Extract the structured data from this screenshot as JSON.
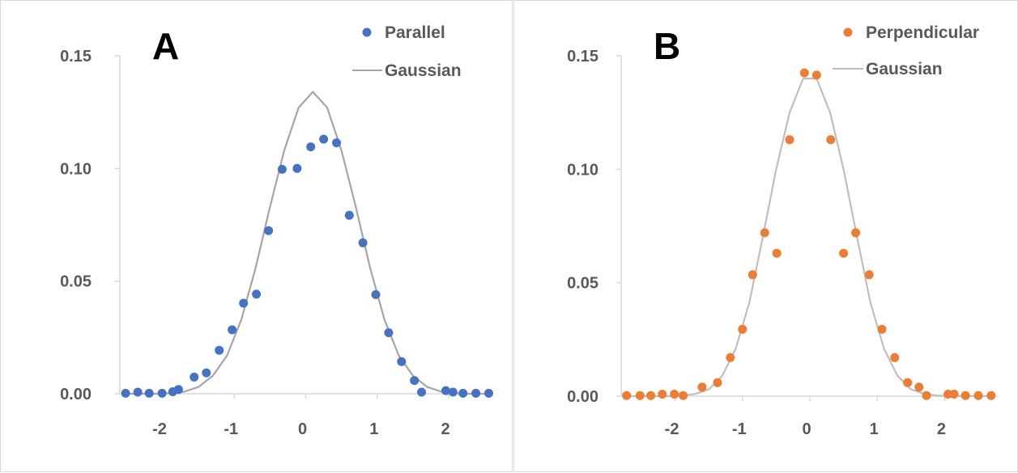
{
  "chart_data": [
    {
      "type": "scatter",
      "panel_label": "A",
      "title": "",
      "xlabel": "",
      "ylabel": "",
      "xlim": [
        -2.6,
        2.6
      ],
      "ylim": [
        0,
        0.15
      ],
      "xticks": [
        "-2",
        "-1",
        "0",
        "1",
        "2"
      ],
      "yticks": [
        "0.00",
        "0.05",
        "0.10",
        "0.15"
      ],
      "grid": false,
      "legend_position": "top-right",
      "series": [
        {
          "name": "Parallel",
          "kind": "points",
          "color": "#4472C4",
          "x": [
            -2.52,
            -2.35,
            -2.19,
            -2.01,
            -1.86,
            -1.78,
            -1.56,
            -1.39,
            -1.21,
            -1.03,
            -0.87,
            -0.69,
            -0.52,
            -0.33,
            -0.12,
            0.07,
            0.25,
            0.43,
            0.61,
            0.8,
            0.98,
            1.16,
            1.34,
            1.52,
            1.62,
            1.96,
            2.06,
            2.2,
            2.38,
            2.56
          ],
          "y": [
            0.0002,
            0.0007,
            0.0002,
            0.0002,
            0.0009,
            0.0019,
            0.0074,
            0.0093,
            0.0193,
            0.0284,
            0.0402,
            0.0442,
            0.0724,
            0.0996,
            0.1,
            0.1096,
            0.113,
            0.1114,
            0.0792,
            0.067,
            0.044,
            0.0271,
            0.0143,
            0.0059,
            0.0007,
            0.0014,
            0.0007,
            0.0002,
            0.0002,
            0.0002
          ]
        },
        {
          "name": "Gaussian",
          "kind": "line",
          "color": "#A5A5A5",
          "x": [
            -2.5,
            -2.3,
            -2.1,
            -1.9,
            -1.7,
            -1.5,
            -1.3,
            -1.1,
            -0.9,
            -0.7,
            -0.5,
            -0.3,
            -0.1,
            0.1,
            0.3,
            0.5,
            0.7,
            0.9,
            1.1,
            1.3,
            1.5,
            1.7,
            1.9,
            2.1,
            2.3,
            2.5
          ],
          "y": [
            0.0,
            0.0,
            0.0,
            0.0002,
            0.0009,
            0.003,
            0.008,
            0.017,
            0.033,
            0.056,
            0.083,
            0.108,
            0.127,
            0.134,
            0.127,
            0.108,
            0.083,
            0.056,
            0.033,
            0.017,
            0.008,
            0.003,
            0.0009,
            0.0002,
            0.0,
            0.0
          ]
        }
      ]
    },
    {
      "type": "scatter",
      "panel_label": "B",
      "title": "",
      "xlabel": "",
      "ylabel": "",
      "xlim": [
        -2.8,
        2.8
      ],
      "ylim": [
        0,
        0.15
      ],
      "xticks": [
        "-2",
        "-1",
        "0",
        "1",
        "2"
      ],
      "yticks": [
        "0.00",
        "0.05",
        "0.10",
        "0.15"
      ],
      "grid": false,
      "legend_position": "top-right",
      "series": [
        {
          "name": "Perpendicular",
          "kind": "points",
          "color": "#ED7D31",
          "x": [
            -2.72,
            -2.52,
            -2.36,
            -2.19,
            -2.01,
            -1.88,
            -1.6,
            -1.37,
            -1.18,
            -1.0,
            -0.85,
            -0.67,
            -0.49,
            -0.3,
            -0.08,
            0.1,
            0.31,
            0.5,
            0.68,
            0.88,
            1.07,
            1.26,
            1.45,
            1.62,
            1.73,
            2.05,
            2.14,
            2.31,
            2.5,
            2.69
          ],
          "y": [
            0.0003,
            0.0003,
            0.0003,
            0.0009,
            0.0009,
            0.0003,
            0.004,
            0.006,
            0.017,
            0.0295,
            0.0535,
            0.072,
            0.063,
            0.113,
            0.1425,
            0.1415,
            0.113,
            0.063,
            0.072,
            0.0535,
            0.0295,
            0.017,
            0.006,
            0.004,
            0.0003,
            0.0009,
            0.0009,
            0.0003,
            0.0003,
            0.0003
          ]
        },
        {
          "name": "Gaussian",
          "kind": "line",
          "color": "#BFBFBF",
          "x": [
            -2.7,
            -2.5,
            -2.3,
            -2.1,
            -1.9,
            -1.7,
            -1.5,
            -1.3,
            -1.1,
            -0.9,
            -0.7,
            -0.5,
            -0.3,
            -0.1,
            0.1,
            0.3,
            0.5,
            0.7,
            0.9,
            1.1,
            1.3,
            1.5,
            1.7,
            1.9,
            2.1,
            2.3,
            2.5,
            2.7
          ],
          "y": [
            0.0,
            0.0,
            0.0,
            0.0,
            0.0002,
            0.001,
            0.003,
            0.009,
            0.021,
            0.041,
            0.07,
            0.1,
            0.125,
            0.14,
            0.14,
            0.125,
            0.1,
            0.07,
            0.041,
            0.021,
            0.009,
            0.003,
            0.001,
            0.0002,
            0.0,
            0.0,
            0.0,
            0.0
          ]
        }
      ]
    }
  ],
  "colors": {
    "axis": "#D9D9D9",
    "tick_text": "#595959"
  }
}
